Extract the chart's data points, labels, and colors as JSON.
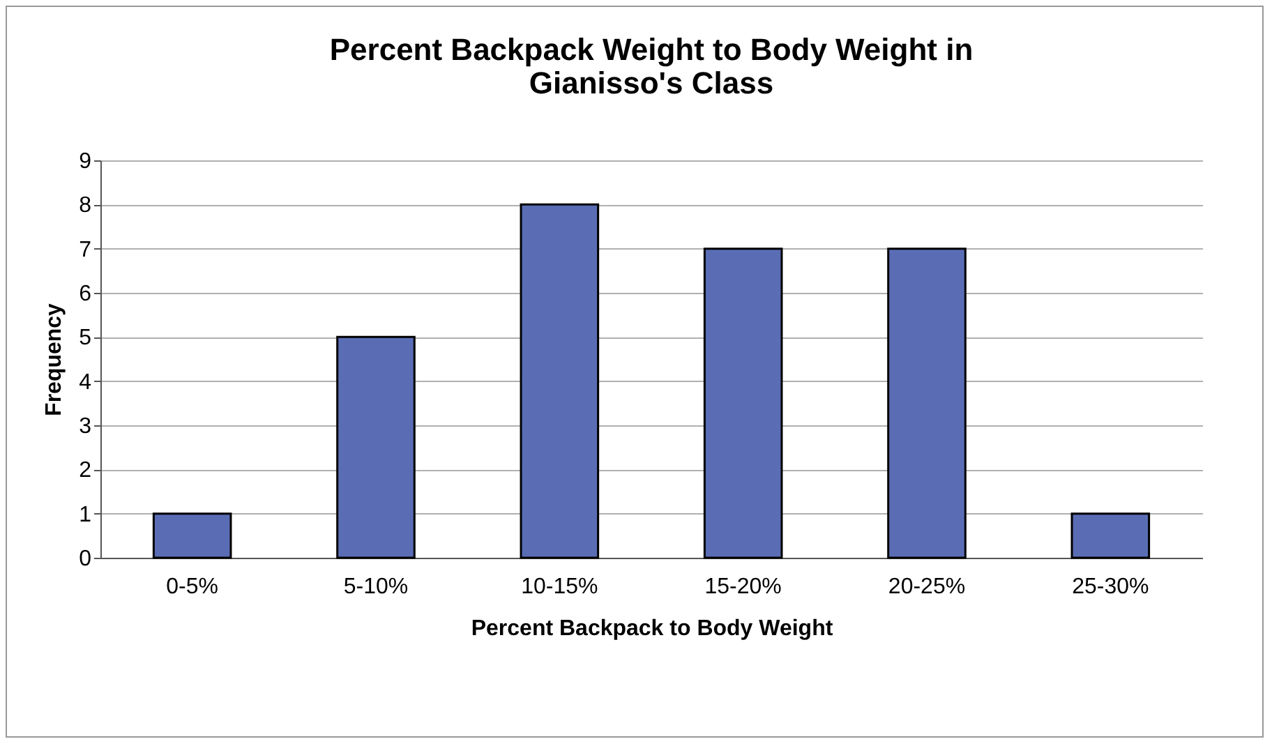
{
  "chart_data": {
    "type": "bar",
    "title": "Percent Backpack Weight to Body Weight in Gianisso's Class",
    "xlabel": "Percent Backpack to Body Weight",
    "ylabel": "Frequency",
    "categories": [
      "0-5%",
      "5-10%",
      "10-15%",
      "15-20%",
      "20-25%",
      "25-30%"
    ],
    "values": [
      1,
      5,
      8,
      7,
      7,
      1
    ],
    "color": "#5a6db4",
    "ylim": [
      0,
      9
    ],
    "yticks": [
      0,
      1,
      2,
      3,
      4,
      5,
      6,
      7,
      8,
      9
    ],
    "grid": "y"
  }
}
